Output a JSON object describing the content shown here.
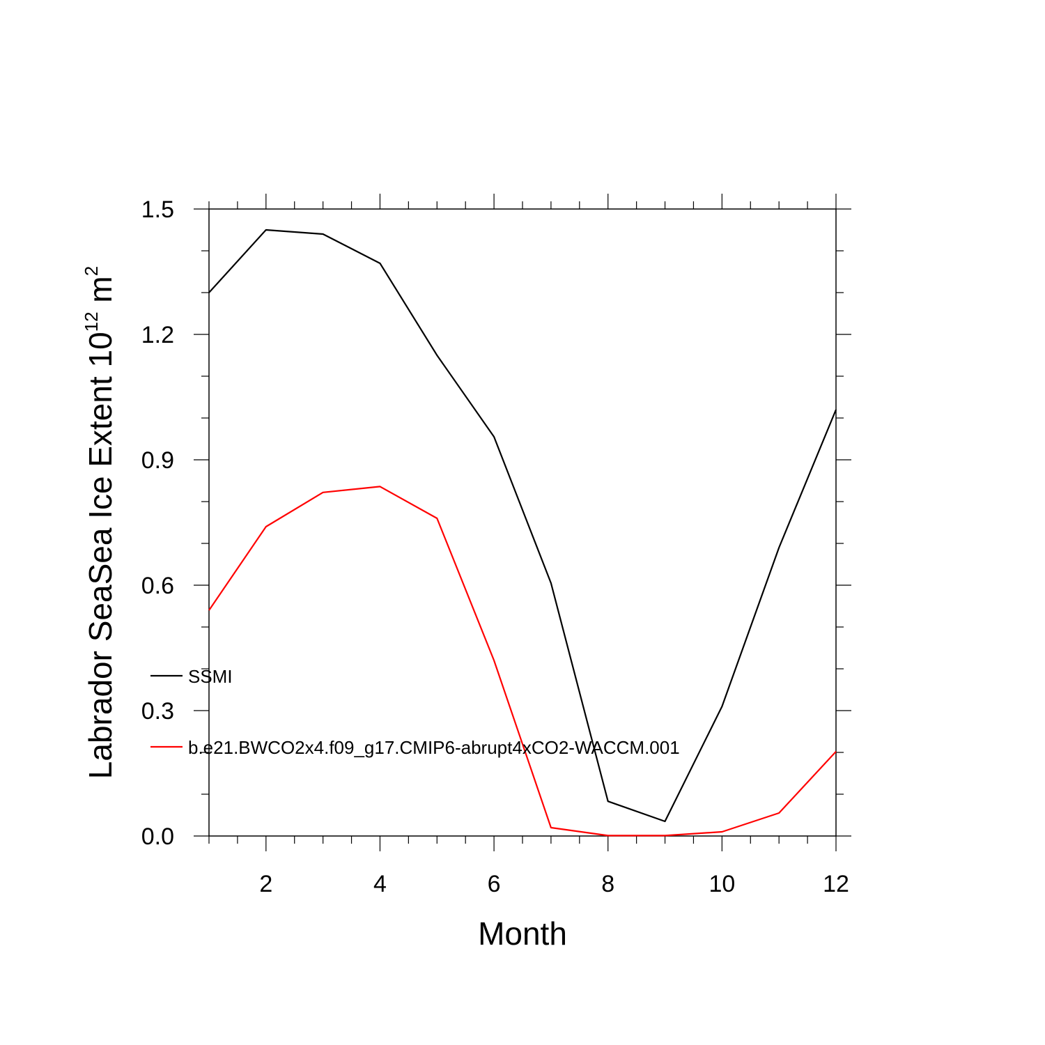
{
  "chart_data": {
    "type": "line",
    "title": "",
    "xlabel": "Month",
    "ylabel": {
      "main": "Labrador SeaSea Ice Extent 10",
      "exponent": "12",
      "unit": " m",
      "unit_exponent": "2"
    },
    "xlim": [
      1,
      12
    ],
    "ylim": [
      0.0,
      1.5
    ],
    "xticks": [
      2,
      4,
      6,
      8,
      10,
      12
    ],
    "xtick_labels": [
      "2",
      "4",
      "6",
      "8",
      "10",
      "12"
    ],
    "yticks": [
      0.0,
      0.3,
      0.6,
      0.9,
      1.2,
      1.5
    ],
    "ytick_labels": [
      "0.0",
      "0.3",
      "0.6",
      "0.9",
      "1.2",
      "1.5"
    ],
    "grid": false,
    "legend_position": "inside-lower-left",
    "x": [
      1,
      2,
      3,
      4,
      5,
      6,
      7,
      8,
      9,
      10,
      11,
      12
    ],
    "series": [
      {
        "name": "SSMI",
        "color": "#000000",
        "values": [
          1.3,
          1.45,
          1.44,
          1.37,
          1.15,
          0.955,
          0.605,
          0.083,
          0.035,
          0.31,
          0.69,
          1.02
        ]
      },
      {
        "name": "b.e21.BWCO2x4.f09_g17.CMIP6-abrupt4xCO2-WACCM.001",
        "color": "#ff0000",
        "values": [
          0.54,
          0.74,
          0.822,
          0.836,
          0.76,
          0.42,
          0.02,
          0.001,
          0.001,
          0.01,
          0.055,
          0.202
        ]
      }
    ]
  }
}
